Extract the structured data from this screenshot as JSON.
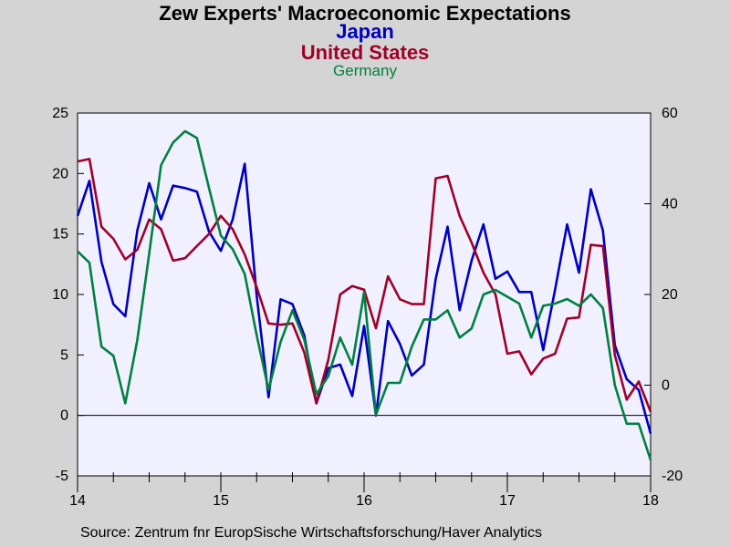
{
  "chart_data": {
    "type": "line",
    "title": "Zew Experts' Macroeconomic Expectations",
    "subtitles": [
      "Japan",
      "United States",
      "Germany"
    ],
    "source": "Source:  Zentrum fnr EuropSische Wirtschaftsforschung/Haver Analytics",
    "x_ticks": [
      "14",
      "15",
      "16",
      "17",
      "18"
    ],
    "x_range": [
      2014.0,
      2018.0
    ],
    "left_axis": {
      "range": [
        -5,
        25
      ],
      "ticks": [
        "25",
        "20",
        "15",
        "10",
        "5",
        "0",
        "-5"
      ]
    },
    "right_axis": {
      "range": [
        -20,
        60
      ],
      "ticks": [
        "60",
        "40",
        "20",
        "0",
        "-20"
      ]
    },
    "series": [
      {
        "name": "Japan",
        "color": "#0000c0",
        "axis": "left",
        "x": [
          2014.0,
          2014.083,
          2014.167,
          2014.25,
          2014.333,
          2014.417,
          2014.5,
          2014.583,
          2014.667,
          2014.75,
          2014.833,
          2014.917,
          2015.0,
          2015.083,
          2015.167,
          2015.25,
          2015.333,
          2015.417,
          2015.5,
          2015.583,
          2015.667,
          2015.75,
          2015.833,
          2015.917,
          2016.0,
          2016.083,
          2016.167,
          2016.25,
          2016.333,
          2016.417,
          2016.5,
          2016.583,
          2016.667,
          2016.75,
          2016.833,
          2016.917,
          2017.0,
          2017.083,
          2017.167,
          2017.25,
          2017.333,
          2017.417,
          2017.5,
          2017.583,
          2017.667,
          2017.75,
          2017.833,
          2017.917,
          2018.0
        ],
        "values": [
          16.5,
          19.4,
          12.7,
          9.2,
          8.2,
          15.3,
          19.2,
          16.2,
          19.0,
          18.8,
          18.5,
          15.2,
          13.6,
          16.2,
          20.8,
          9.9,
          1.5,
          9.6,
          9.2,
          6.6,
          1.0,
          3.9,
          4.2,
          1.6,
          7.4,
          0.0,
          7.8,
          5.9,
          3.3,
          4.2,
          11.3,
          15.6,
          8.7,
          12.8,
          15.8,
          11.3,
          11.9,
          10.2,
          10.2,
          5.4,
          10.4,
          15.8,
          11.8,
          18.7,
          15.3,
          5.8,
          3.0,
          2.1,
          -1.5
        ]
      },
      {
        "name": "United States",
        "color": "#a00028",
        "axis": "left",
        "x": [
          2014.0,
          2014.083,
          2014.167,
          2014.25,
          2014.333,
          2014.417,
          2014.5,
          2014.583,
          2014.667,
          2014.75,
          2014.833,
          2014.917,
          2015.0,
          2015.083,
          2015.167,
          2015.25,
          2015.333,
          2015.417,
          2015.5,
          2015.583,
          2015.667,
          2015.75,
          2015.833,
          2015.917,
          2016.0,
          2016.083,
          2016.167,
          2016.25,
          2016.333,
          2016.417,
          2016.5,
          2016.583,
          2016.667,
          2016.75,
          2016.833,
          2016.917,
          2017.0,
          2017.083,
          2017.167,
          2017.25,
          2017.333,
          2017.417,
          2017.5,
          2017.583,
          2017.667,
          2017.75,
          2017.833,
          2017.917,
          2018.0
        ],
        "values": [
          21.0,
          21.2,
          15.6,
          14.6,
          12.9,
          13.7,
          16.2,
          15.4,
          12.8,
          13.0,
          14.0,
          15.0,
          16.5,
          15.4,
          13.3,
          10.6,
          7.6,
          7.5,
          7.6,
          5.2,
          1.0,
          4.6,
          10.0,
          10.7,
          10.4,
          7.2,
          11.5,
          9.6,
          9.2,
          9.2,
          19.6,
          19.8,
          16.5,
          14.3,
          11.8,
          10.0,
          5.1,
          5.3,
          3.4,
          4.7,
          5.1,
          8.0,
          8.1,
          14.1,
          14.0,
          5.0,
          1.3,
          2.8,
          0.3
        ]
      },
      {
        "name": "Germany",
        "color": "#008040",
        "axis": "right",
        "x": [
          2014.0,
          2014.083,
          2014.167,
          2014.25,
          2014.333,
          2014.417,
          2014.5,
          2014.583,
          2014.667,
          2014.75,
          2014.833,
          2014.917,
          2015.0,
          2015.083,
          2015.167,
          2015.25,
          2015.333,
          2015.417,
          2015.5,
          2015.583,
          2015.667,
          2015.75,
          2015.833,
          2015.917,
          2016.0,
          2016.083,
          2016.167,
          2016.25,
          2016.333,
          2016.417,
          2016.5,
          2016.583,
          2016.667,
          2016.75,
          2016.833,
          2016.917,
          2017.0,
          2017.083,
          2017.167,
          2017.25,
          2017.333,
          2017.417,
          2017.5,
          2017.583,
          2017.667,
          2017.75,
          2017.833,
          2017.917,
          2018.0
        ],
        "values": [
          29.5,
          27.0,
          8.5,
          6.5,
          -4.0,
          10.0,
          29.0,
          48.5,
          53.5,
          56.0,
          54.5,
          43.5,
          33.0,
          30.0,
          24.5,
          11.0,
          -1.0,
          9.5,
          16.5,
          10.0,
          -2.0,
          2.0,
          10.5,
          4.5,
          20.5,
          -6.5,
          0.5,
          0.5,
          8.5,
          14.5,
          14.5,
          16.5,
          10.5,
          12.5,
          20.0,
          21.0,
          19.5,
          18.0,
          10.5,
          17.5,
          18.0,
          19.0,
          17.5,
          20.0,
          17.0,
          0.0,
          -8.5,
          -8.5,
          -16.5
        ]
      }
    ]
  }
}
